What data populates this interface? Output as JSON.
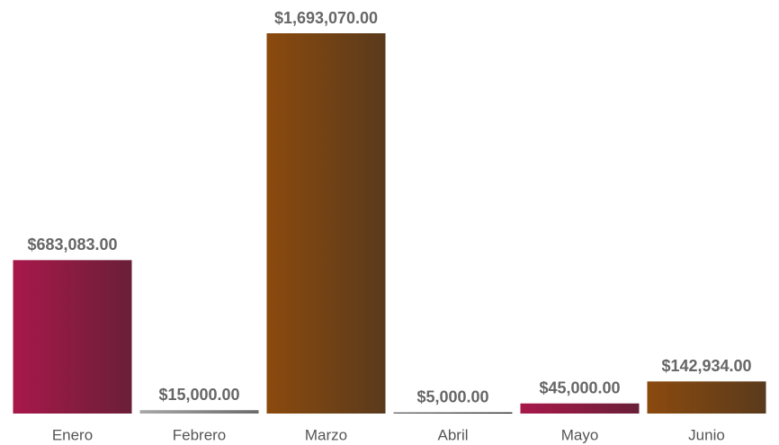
{
  "chart_data": {
    "type": "bar",
    "categories": [
      "Enero",
      "Febrero",
      "Marzo",
      "Abril",
      "Mayo",
      "Junio"
    ],
    "values": [
      683083,
      15000,
      1693070,
      5000,
      45000,
      142934
    ],
    "value_labels": [
      "$683,083.00",
      "$15,000.00",
      "$1,693,070.00",
      "$5,000.00",
      "$45,000.00",
      "$142,934.00"
    ],
    "colors": [
      [
        "#a8184a",
        "#6a1f38"
      ],
      [
        "#a8a8a8",
        "#6a6a6a"
      ],
      [
        "#8b4a0e",
        "#5a3a1c"
      ],
      [
        "#5a5a5a",
        "#111111"
      ],
      [
        "#a8184a",
        "#6a1f38"
      ],
      [
        "#8b4a0e",
        "#5a3a1c"
      ]
    ]
  }
}
